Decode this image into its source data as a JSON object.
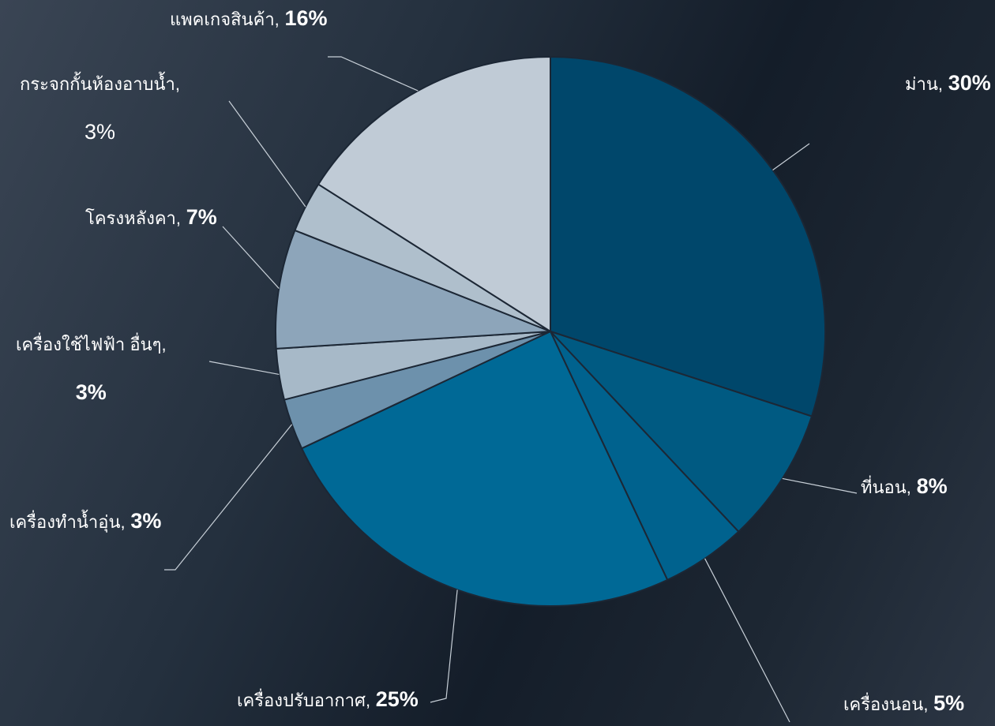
{
  "chart_data": {
    "type": "pie",
    "categories": [
      "ม่าน",
      "ที่นอน",
      "เครื่องนอน",
      "เครื่องปรับอากาศ",
      "เครื่องทำน้ำอุ่น",
      "เครื่องใช้ไฟฟ้า อื่นๆ",
      "โครงหลังคา",
      "กระจกกั้นห้องอาบน้ำ",
      "แพคเกจสินค้า"
    ],
    "values": [
      30,
      8,
      5,
      25,
      3,
      3,
      7,
      3,
      16
    ],
    "value_labels": [
      "30%",
      "8%",
      "5%",
      "25%",
      "3%",
      "3%",
      "7%",
      "3%",
      "16%"
    ],
    "colors": [
      "#00476b",
      "#005a82",
      "#00628e",
      "#006996",
      "#6d91ac",
      "#a7b9c8",
      "#8da5ba",
      "#afbfcc",
      "#c0cbd6"
    ]
  }
}
